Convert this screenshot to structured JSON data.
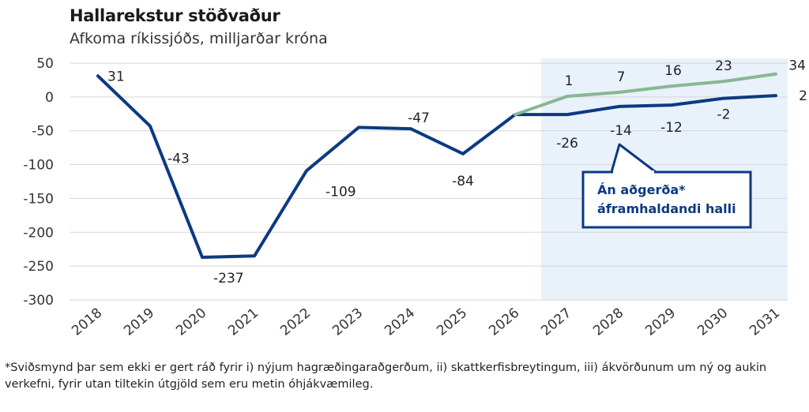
{
  "chart_data": {
    "type": "line",
    "title": "Hallarekstur stöðvaður",
    "subtitle": "Afkoma ríkissjóðs, milljarðar króna",
    "x": [
      "2018",
      "2019",
      "2020",
      "2021",
      "2022",
      "2023",
      "2024",
      "2025",
      "2026",
      "2027",
      "2028",
      "2029",
      "2030",
      "2031"
    ],
    "ylim": [
      -300,
      50
    ],
    "yticks": [
      50,
      0,
      -50,
      -100,
      -150,
      -200,
      -250,
      -300
    ],
    "grid": true,
    "highlight_region": {
      "from": "2027",
      "to": "2031"
    },
    "series": [
      {
        "key": "historical",
        "name": "",
        "color": "#0b3a82",
        "values": [
          31,
          -43,
          -237,
          -235,
          -109,
          -45,
          -47,
          -84,
          -26,
          -26,
          -14,
          -12,
          -2,
          2
        ],
        "labels": [
          "31",
          "-43",
          "-237",
          "",
          "-109",
          "",
          "-47",
          "-84",
          "",
          "-26",
          "-14",
          "-12",
          "-2",
          "2"
        ]
      },
      {
        "key": "projection",
        "name": "",
        "color": "#86b892",
        "x": [
          "2026",
          "2027",
          "2028",
          "2029",
          "2030",
          "2031"
        ],
        "values": [
          -26,
          1,
          7,
          16,
          23,
          34
        ],
        "labels": [
          "",
          "1",
          "7",
          "16",
          "23",
          "34"
        ]
      }
    ],
    "callout": {
      "line1": "Án aðgerða*",
      "line2": "áframhaldandi halli",
      "color": "#0b3a82"
    }
  },
  "footnote": "*Sviðsmynd þar sem ekki er gert ráð fyrir i) nýjum hagræðingaraðgerðum, ii) skattkerfisbreytingum, iii) ákvörðunum um ný og aukin verkefni, fyrir utan tiltekin útgjöld sem eru metin óhjákvæmileg."
}
